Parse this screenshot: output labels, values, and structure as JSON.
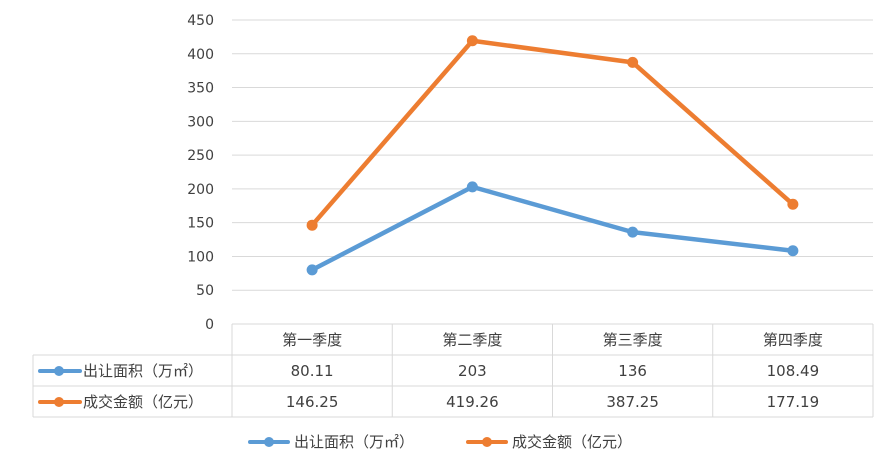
{
  "chart_data": {
    "type": "line",
    "categories": [
      "第一季度",
      "第二季度",
      "第三季度",
      "第四季度"
    ],
    "series": [
      {
        "name": "出让面积（万㎡）",
        "color": "#5b9bd5",
        "values": [
          80.11,
          203,
          136,
          108.49
        ]
      },
      {
        "name": "成交金额（亿元）",
        "color": "#ed7d31",
        "values": [
          146.25,
          419.26,
          387.25,
          177.19
        ]
      }
    ],
    "data_table": {
      "rows": [
        {
          "label": "出让面积（万㎡）",
          "cells": [
            "80.11",
            "203",
            "136",
            "108.49"
          ]
        },
        {
          "label": "成交金额（亿元）",
          "cells": [
            "146.25",
            "419.26",
            "387.25",
            "177.19"
          ]
        }
      ]
    },
    "yticks": [
      "0",
      "50",
      "100",
      "150",
      "200",
      "250",
      "300",
      "350",
      "400",
      "450"
    ],
    "ylim": [
      0,
      450
    ],
    "grid": true,
    "legend_position": "bottom"
  }
}
